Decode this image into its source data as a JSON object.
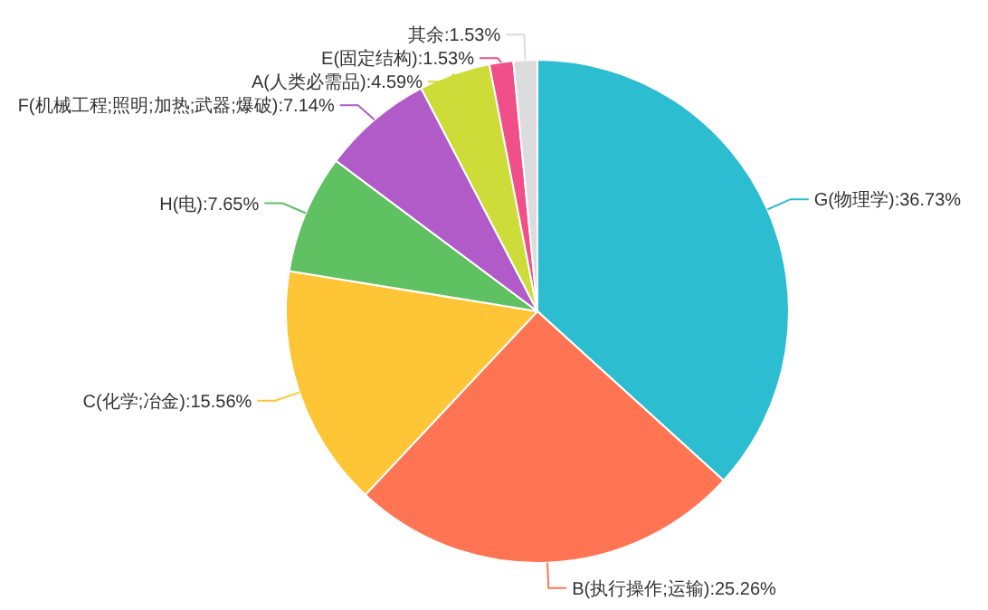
{
  "chart_data": {
    "type": "pie",
    "categories": [
      "G(物理学)",
      "B(执行操作;运输)",
      "C(化学;冶金)",
      "H(电)",
      "F(机械工程;照明;加热;武器;爆破)",
      "A(人类必需品)",
      "E(固定结构)",
      "其余"
    ],
    "values": [
      36.73,
      25.26,
      15.56,
      7.65,
      7.14,
      4.59,
      1.53,
      1.53
    ],
    "colors": [
      "#2dbdd0",
      "#ff7452",
      "#fec537",
      "#5fc162",
      "#b15bc9",
      "#cddc39",
      "#f04f8a",
      "#dcdcdc"
    ],
    "value_labels": [
      "36.73%",
      "25.26%",
      "15.56%",
      "7.65%",
      "7.14%",
      "4.59%",
      "1.53%",
      "1.53%"
    ]
  }
}
